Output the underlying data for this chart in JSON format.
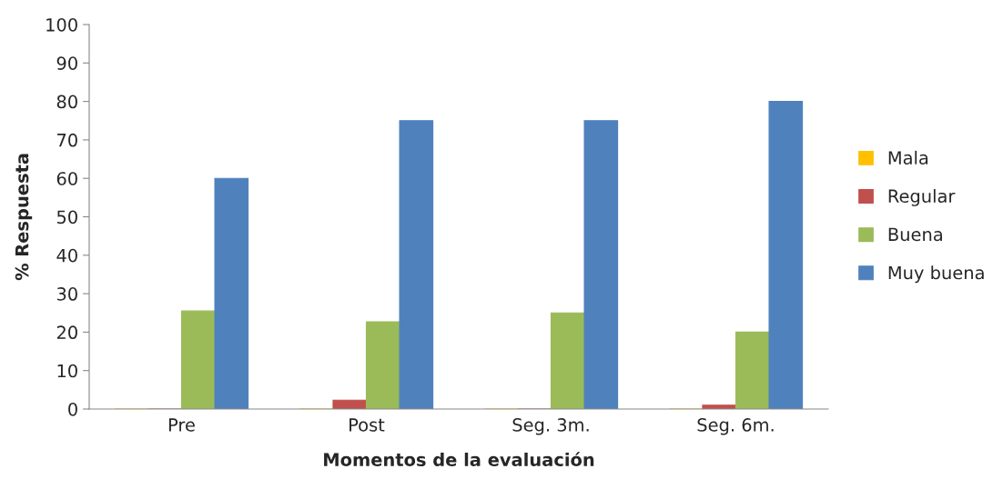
{
  "chart_data": {
    "type": "bar",
    "xlabel": "Momentos de la evaluación",
    "ylabel": "% Respuesta",
    "categories": [
      "Pre",
      "Post",
      "Seg. 3m.",
      "Seg. 6m."
    ],
    "series": [
      {
        "name": "Mala",
        "color": "#ffc000",
        "values": [
          0,
          0,
          0,
          0
        ]
      },
      {
        "name": "Regular",
        "color": "#c0504d",
        "values": [
          0,
          2.3,
          0,
          1
        ]
      },
      {
        "name": "Buena",
        "color": "#9bbb59",
        "values": [
          25.5,
          22.7,
          25,
          20
        ]
      },
      {
        "name": "Muy buena",
        "color": "#4f81bd",
        "values": [
          60,
          75,
          75,
          80
        ]
      }
    ],
    "ylim": [
      0,
      100
    ],
    "yticks": [
      0,
      10,
      20,
      30,
      40,
      50,
      60,
      70,
      80,
      90,
      100
    ],
    "grid": false,
    "legend": "right"
  }
}
